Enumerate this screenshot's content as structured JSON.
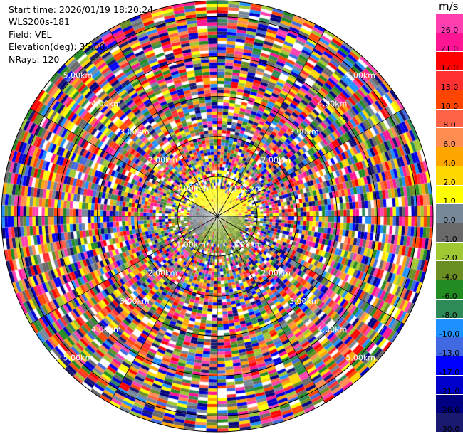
{
  "header": {
    "start_time": "Start time: 2026/01/19 18:20:24",
    "site": "WLS200s-181",
    "field": "Field: VEL",
    "elevation": "Elevation(deg): 35.00",
    "nrays": "NRays: 120"
  },
  "chart_data": {
    "type": "heatmap",
    "projection": "polar-ppi",
    "field": "VEL",
    "units": "m/s",
    "elevation_deg": 35.0,
    "n_rays": 120,
    "range_rings_km": [
      1.0,
      2.0,
      3.0,
      4.0,
      5.0
    ],
    "range_ring_labels": [
      "1.00km",
      "2.00km",
      "3.00km",
      "4.00km",
      "5.00km"
    ],
    "max_range_km": 5.4,
    "colorbar": {
      "label": "m/s",
      "ticks": [
        "26.0",
        "21.0",
        "17.0",
        "13.0",
        "10.0",
        "8.0",
        "6.0",
        "4.0",
        "2.0",
        "1.0",
        "0.0",
        "-1.0",
        "-2.0",
        "-4.0",
        "-6.0",
        "-8.0",
        "-10.0",
        "-13.0",
        "-17.0",
        "-21.0",
        "-26.0",
        "-30.0"
      ],
      "colors": [
        "#ff3fb0",
        "#ff1493",
        "#ff0000",
        "#ff3030",
        "#ff4500",
        "#ff6347",
        "#ff8c50",
        "#ffa500",
        "#ffd700",
        "#ffff00",
        "#778899",
        "#696969",
        "#a0c832",
        "#6b8e23",
        "#228b22",
        "#2e8b57",
        "#1e90ff",
        "#4169e1",
        "#0000ff",
        "#0000cd",
        "#000080",
        "#191970"
      ]
    }
  }
}
